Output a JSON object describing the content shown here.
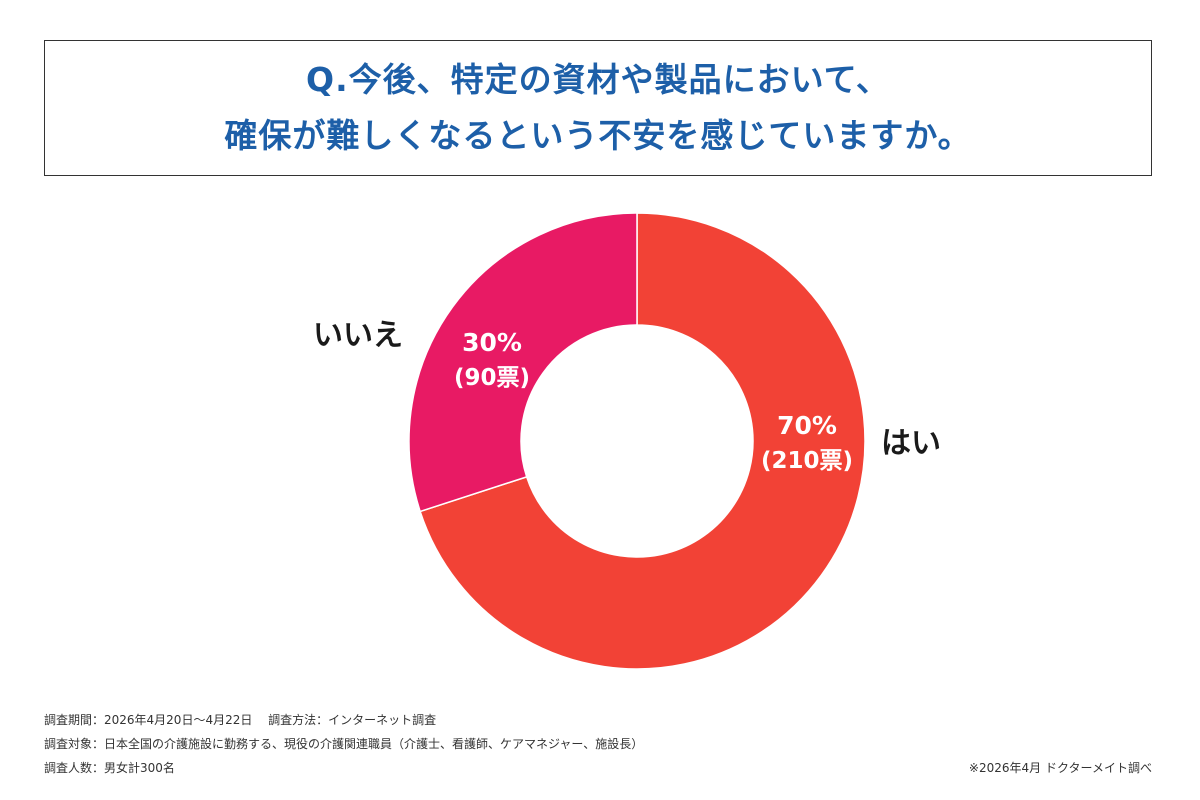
{
  "title": {
    "line1": "Q.今後、特定の資材や製品において、",
    "line2": "確保が難しくなるという不安を感じていますか。"
  },
  "chart_data": {
    "type": "pie",
    "categories": [
      "はい",
      "いいえ"
    ],
    "values": [
      70,
      30
    ],
    "value_labels": [
      "70%",
      "30%"
    ],
    "count_labels": [
      "(210票)",
      "(90票)"
    ],
    "counts": [
      210,
      90
    ],
    "colors": [
      "#f24236",
      "#e81a64"
    ],
    "label_color": "#1a1a1a",
    "inner_text_color": "#ffffff"
  },
  "footer": {
    "period": "調査期間：2026年4月20日〜4月22日　 調査方法：インターネット調査",
    "target": "調査対象：日本全国の介護施設に勤務する、現役の介護関連職員（介護士、看護師、ケアマネジャー、施設長）",
    "count": "調査人数：男女計300名",
    "credit": "※2026年4月 ドクターメイト調べ"
  }
}
